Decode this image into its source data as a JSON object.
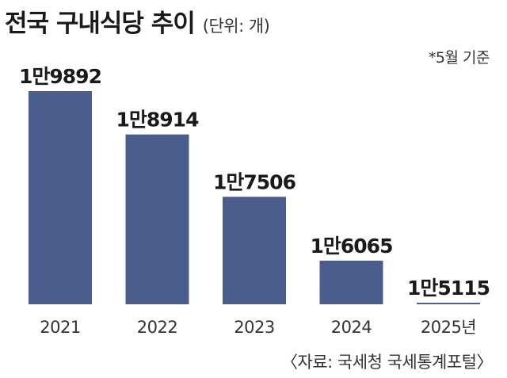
{
  "header": {
    "title": "전국 구내식당 추이",
    "unit": "(단위: 개)"
  },
  "note": "*5월 기준",
  "source": "〈자료: 국세청 국세통계포털〉",
  "colors": {
    "bar": "#4a5d8c",
    "label": "#1a1a1a"
  },
  "chart_data": {
    "type": "bar",
    "title": "전국 구내식당 추이",
    "unit": "개",
    "categories": [
      "2021",
      "2022",
      "2023",
      "2024",
      "2025년"
    ],
    "values": [
      19892,
      18914,
      17506,
      16065,
      15115
    ],
    "value_labels": [
      "1만9892",
      "1만8914",
      "1만7506",
      "1만6065",
      "1만5115"
    ],
    "xlabel": "",
    "ylabel": "",
    "grid": false,
    "legend": "none"
  }
}
